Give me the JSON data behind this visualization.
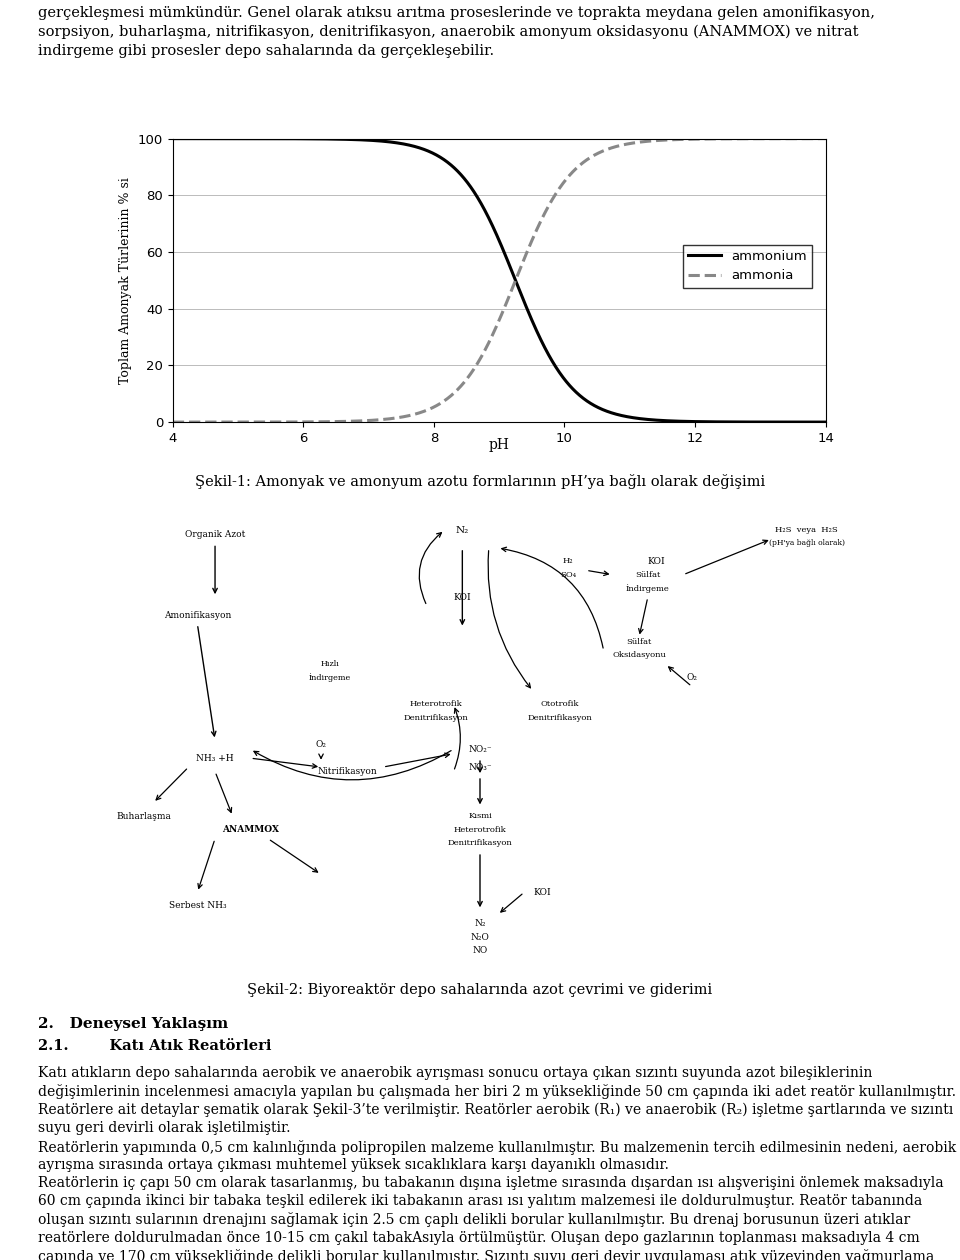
{
  "title": "",
  "xlabel": "pH",
  "ylabel": "Toplam Amonyak Türlerinin % si",
  "xlim": [
    4,
    14
  ],
  "ylim": [
    0,
    100
  ],
  "xticks": [
    4,
    6,
    8,
    10,
    12,
    14
  ],
  "yticks": [
    0,
    20,
    40,
    60,
    80,
    100
  ],
  "ammonium_color": "#000000",
  "ammonia_color": "#888888",
  "legend_labels": [
    "ammonium",
    "ammonia"
  ],
  "caption1": "Şekil-1: Amonyak ve amonyum azotu formlarının pH’ya bağlı olarak değişimi",
  "caption2": "Şekil-2: Biyoreaktör depo sahalarında azot çevrimi ve giderimi",
  "background_color": "#ffffff",
  "figsize": [
    9.6,
    12.6
  ],
  "dpi": 100,
  "pka": 9.25,
  "top_text": "gerçekleşmesi mümkündür. Genel olarak atıksu arıtma proseslerinde ve toprakta meydana gelen amonifikasyon,\nsorpsiyon, buharlaşma, nitrifikasyon, denitrifikasyon, anaerobik amonyum oksidasyonu (ANAMMOX) ve nitrat\nindirgeme gibi prosesler depo sahalarında da gerçekleşebilir.",
  "bottom_heading1": "2.   Deneysel Yaklaşım",
  "bottom_heading2": "2.1.        Katı Atık Reatörleri",
  "bottom_body": "Katı atıkların depo sahalarında aerobik ve anaerobik ayrışması sonucu ortaya çıkan sızıntı suyunda azot bileşiklerinin değişimlerinin incelenmesi amacıyla yapılan bu çalışmada her biri 2 m yüksekliğinde 50 cm çapında iki adet reatör kullanılmıştır. Reatörlere ait detaylar şematik olarak Şekil-3’te verilmiştir. Reatörler aerobik (R₁) ve anaerobik (R₂) işletme şartlarında ve sızıntı suyu geri devirli olarak işletilmiştir.\nReatörlerin yapımında 0,5 cm kalınlığında polipropilen malzeme kullanılmıştır. Bu malzemenin tercih edilmesinin nedeni, aerobik ayrışma sırasında ortaya çıkması muhtemel yüksek sıcaklıklara karşı dayanıklı olmasıdır.\nReatörlerin iç çapı 50 cm olarak tasarlanmış, bu tabakanın dışına işletme sırasında dışardan ısı alışverişini önlemek maksadıyla 60 cm çapında ikinci bir tabaka teşkil edilerek iki tabakanın arası ısı yalıtım malzemesi ile doldurulmuştur. Reatör tabanında oluşan sızıntı sularının drenajını sağlamak için 2.5 cm çaplı delikli borular kullanılmıştır. Bu drenaj borusunun üzeri atıklar reatörlere doldurulmadan önce 10-15 cm çakıl tabakAsıyla örtülmüştür. Oluşan depo gazlarının toplanması maksadıyla 4 cm çapında ve 170 cm yüksekliğinde delikli borular kullanılmıştır. Sızıntı suyu geri devir uygulaması atık yüzeyinden yağmurlama metoduyla gerçekleştirilmiştir. Bu maksatla, reatörlerin kapaklarına delikli borularla teşkil edilmiş birer T parçası yerleştirilmiştir. Havalandırmalı reatörde ortama yeterli hava verilebilmesi için kompresör kullanılmıştır. Havalandırma işlemi için aerobik"
}
